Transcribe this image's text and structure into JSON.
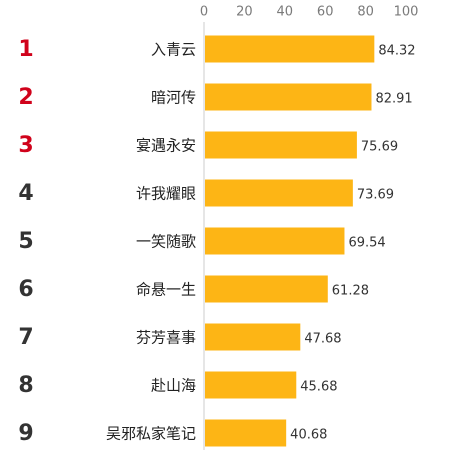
{
  "chart_data": {
    "type": "bar",
    "orientation": "horizontal",
    "title": "",
    "xlabel": "",
    "ylabel": "",
    "xlim": [
      0,
      100
    ],
    "ticks": [
      "0",
      "20",
      "40",
      "60",
      "80",
      "100"
    ],
    "ranks": [
      "1",
      "2",
      "3",
      "4",
      "5",
      "6",
      "7",
      "8",
      "9"
    ],
    "categories": [
      "入青云",
      "暗河传",
      "宴遇永安",
      "许我耀眼",
      "一笑随歌",
      "命悬一生",
      "芬芳喜事",
      "赴山海",
      "吴邪私家笔记"
    ],
    "values": [
      84.32,
      82.91,
      75.69,
      73.69,
      69.54,
      61.28,
      47.68,
      45.68,
      40.68
    ],
    "value_labels": [
      "84.32",
      "82.91",
      "75.69",
      "73.69",
      "69.54",
      "61.28",
      "47.68",
      "45.68",
      "40.68"
    ],
    "grid": false,
    "legend": "none",
    "colors": {
      "bar": "#FDB515",
      "rank_top": "#D0021B",
      "rank_other": "#333333",
      "axis": "#cccccc"
    }
  }
}
